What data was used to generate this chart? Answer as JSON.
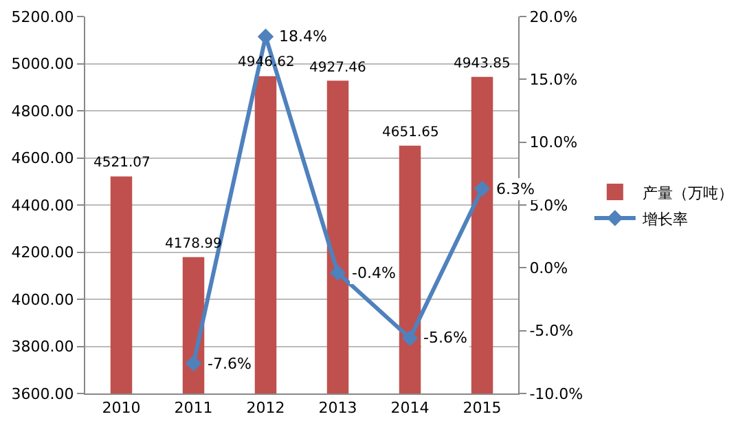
{
  "chart_data": {
    "type": "bar",
    "categories": [
      "2010",
      "2011",
      "2012",
      "2013",
      "2014",
      "2015"
    ],
    "series": [
      {
        "name": "产量（万吨）",
        "color": "#c0504d",
        "values": [
          4521.07,
          4178.99,
          4946.62,
          4927.46,
          4651.65,
          4943.85
        ],
        "value_labels": [
          "4521.07",
          "4178.99",
          "4946.62",
          "4927.46",
          "4651.65",
          "4943.85"
        ]
      },
      {
        "name": "增长率",
        "type": "line",
        "axis": "y2",
        "color": "#4f81bd",
        "marker": "diamond",
        "values": [
          null,
          -7.6,
          18.4,
          -0.4,
          -5.6,
          6.3
        ],
        "value_labels": [
          null,
          "-7.6%",
          "18.4%",
          "-0.4%",
          "-5.6%",
          "6.3%"
        ]
      }
    ],
    "ylim": [
      3600,
      5200
    ],
    "yticks": [
      {
        "value": 3600,
        "label": "3600.00"
      },
      {
        "value": 3800,
        "label": "3800.00"
      },
      {
        "value": 4000,
        "label": "4000.00"
      },
      {
        "value": 4200,
        "label": "4200.00"
      },
      {
        "value": 4400,
        "label": "4400.00"
      },
      {
        "value": 4600,
        "label": "4600.00"
      },
      {
        "value": 4800,
        "label": "4800.00"
      },
      {
        "value": 5000,
        "label": "5000.00"
      },
      {
        "value": 5200,
        "label": "5200.00"
      }
    ],
    "y2lim": [
      -10,
      20
    ],
    "y2ticks": [
      {
        "value": -10,
        "label": "-10.0%"
      },
      {
        "value": -5,
        "label": "-5.0%"
      },
      {
        "value": 0,
        "label": "0.0%"
      },
      {
        "value": 5,
        "label": "5.0%"
      },
      {
        "value": 10,
        "label": "10.0%"
      },
      {
        "value": 15,
        "label": "15.0%"
      },
      {
        "value": 20,
        "label": "20.0%"
      }
    ],
    "grid": "y",
    "legend": "right"
  }
}
